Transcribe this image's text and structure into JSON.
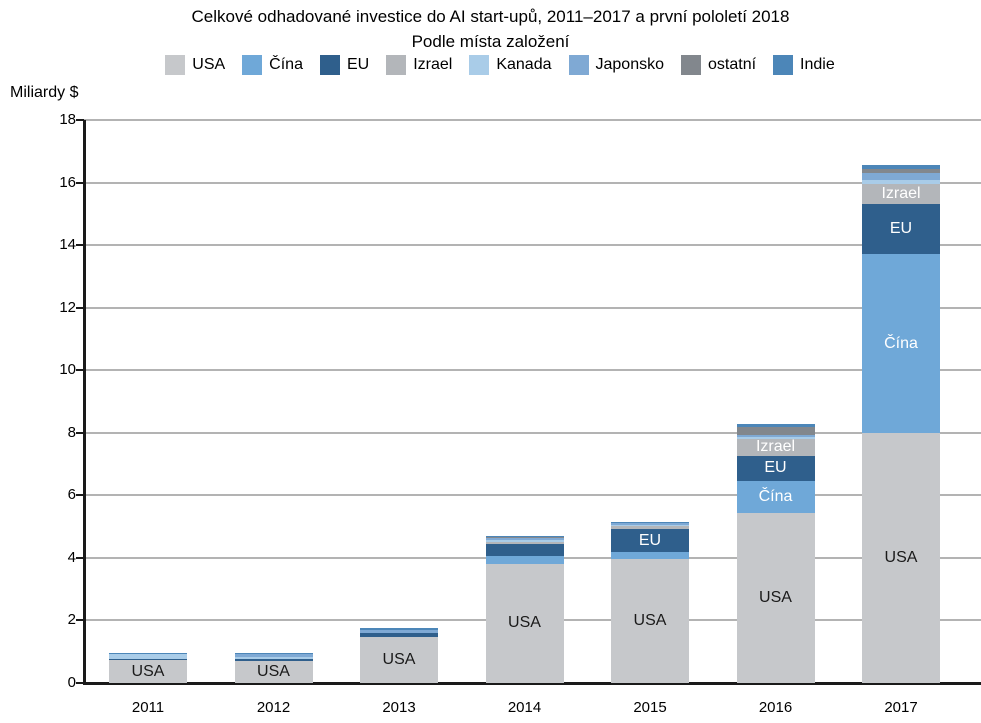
{
  "chart": {
    "title": "Celkové odhadované investice do AI start-upů, 2011–2017 a první pololetí 2018",
    "subtitle": "Podle místa založení",
    "y_axis_label": "Miliardy $"
  },
  "chart_data": {
    "type": "bar",
    "stacked": true,
    "title": "Celkové odhadované investice do AI start-upů, 2011–2017 a první pololetí 2018",
    "subtitle": "Podle místa založení",
    "xlabel": "",
    "ylabel": "Miliardy $",
    "ylim": [
      0,
      18
    ],
    "ytick_step": 2,
    "grid": true,
    "legend_position": "top",
    "categories": [
      "2011",
      "2012",
      "2013",
      "2014",
      "2015",
      "2016",
      "2017"
    ],
    "series": [
      {
        "name": "USA",
        "color": "#c6c8cb",
        "values": [
          0.72,
          0.7,
          1.46,
          3.82,
          3.98,
          5.45,
          8.0
        ]
      },
      {
        "name": "Čína",
        "color": "#6fa8d8",
        "values": [
          0,
          0,
          0,
          0.25,
          0.21,
          1.02,
          5.7
        ]
      },
      {
        "name": "EU",
        "color": "#2f5f8c",
        "values": [
          0.06,
          0.06,
          0.13,
          0.37,
          0.73,
          0.8,
          1.6
        ]
      },
      {
        "name": "Izrael",
        "color": "#b3b6ba",
        "values": [
          0,
          0,
          0,
          0.06,
          0.1,
          0.53,
          0.64
        ]
      },
      {
        "name": "Kanada",
        "color": "#a9cce8",
        "values": [
          0.14,
          0.06,
          0,
          0.06,
          0.02,
          0.06,
          0.13
        ]
      },
      {
        "name": "Japonsko",
        "color": "#7fa9d4",
        "values": [
          0,
          0.1,
          0.12,
          0.1,
          0.07,
          0.07,
          0.25
        ]
      },
      {
        "name": "ostatní",
        "color": "#82878d",
        "values": [
          0,
          0,
          0,
          0.02,
          0,
          0.25,
          0.11
        ]
      },
      {
        "name": "Indie",
        "color": "#4c86b8",
        "values": [
          0.03,
          0.03,
          0.04,
          0.03,
          0.05,
          0.1,
          0.12
        ]
      }
    ],
    "segment_labels": {
      "2011": [
        "USA"
      ],
      "2012": [
        "USA"
      ],
      "2013": [
        "USA"
      ],
      "2014": [
        "USA"
      ],
      "2015": [
        "USA",
        "EU"
      ],
      "2016": [
        "USA",
        "Čína",
        "EU",
        "Izrael"
      ],
      "2017": [
        "USA",
        "Čína",
        "EU",
        "Izrael"
      ]
    },
    "label_colors": {
      "USA": "#1a1a1a",
      "Čína": "#ffffff",
      "EU": "#ffffff",
      "Izrael": "#ffffff"
    },
    "colors": {
      "gridline": "#b3b3b3",
      "axis": "#1a1a1a"
    }
  }
}
